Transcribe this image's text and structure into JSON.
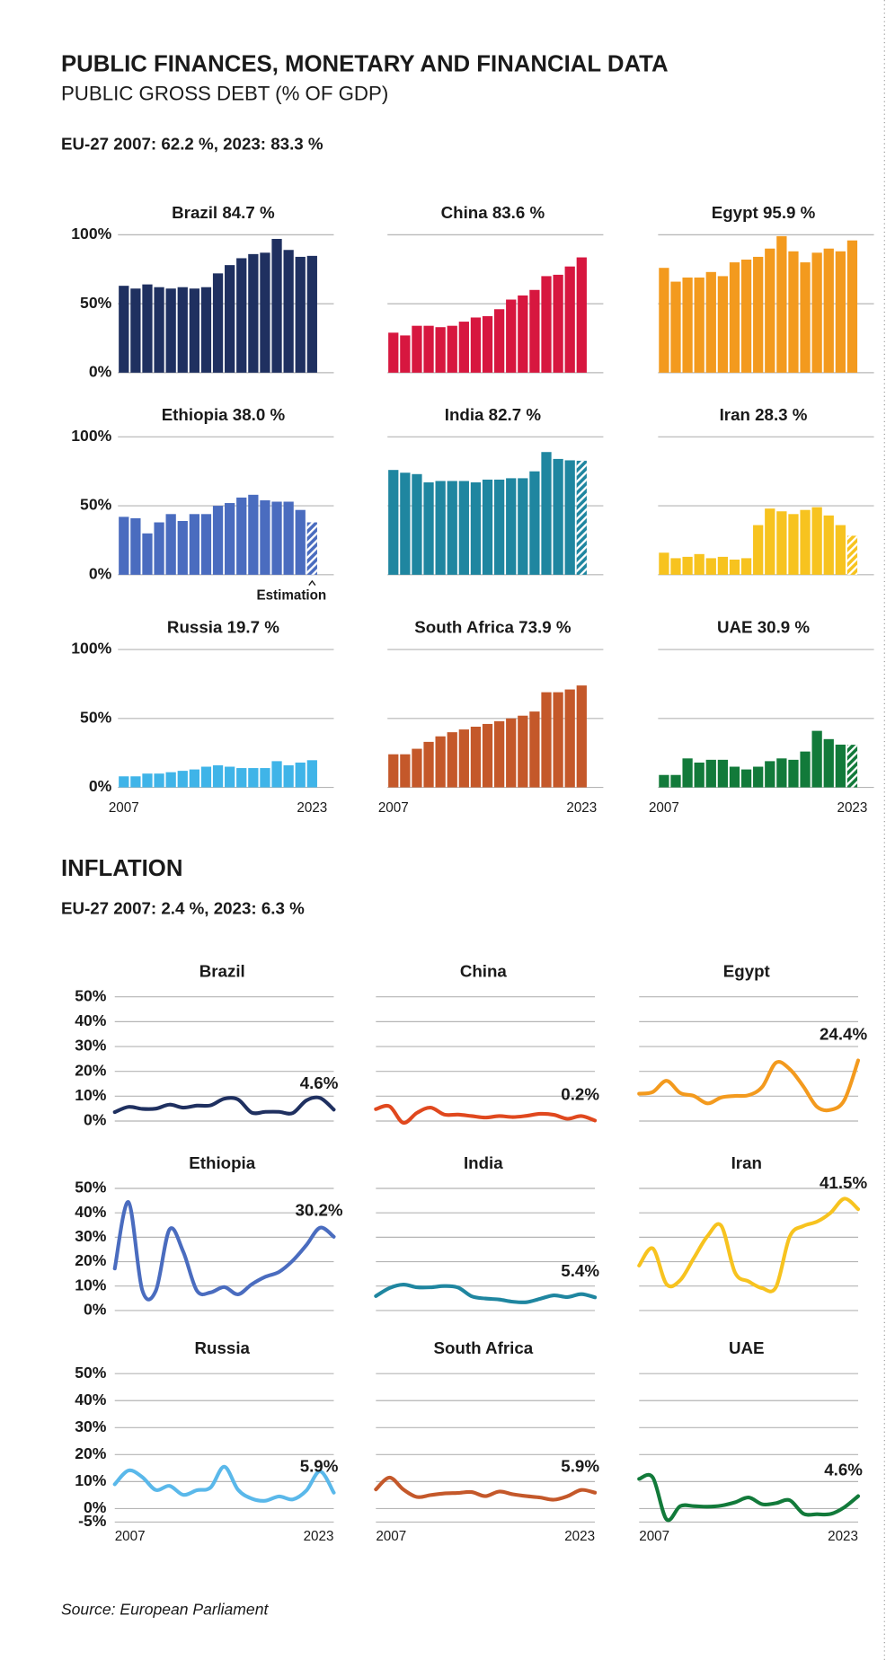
{
  "header": {
    "title": "PUBLIC FINANCES, MONETARY AND FINANCIAL DATA",
    "subtitle": "PUBLIC GROSS DEBT (% OF GDP)",
    "debt_note": "EU-27 2007: 62.2 %, 2023: 83.3  %",
    "inflation_title": "INFLATION",
    "inflation_note": "EU-27 2007: 2.4 %, 2023: 6.3  %",
    "source": "Source: European Parliament"
  },
  "chart_data": [
    {
      "type": "bar",
      "title": "Brazil  84.7 %",
      "color": "#1f3060",
      "grid": true,
      "estimate": false,
      "categories": [
        null,
        null,
        null,
        null,
        null,
        null,
        null,
        null,
        null,
        null,
        null,
        null,
        null,
        null,
        null,
        null,
        null
      ],
      "values": [
        63,
        61,
        64,
        62,
        61,
        62,
        61,
        62,
        72,
        78,
        83,
        86,
        87,
        97,
        89,
        84,
        84.7
      ],
      "ylim": [
        0,
        100
      ],
      "yticks": [
        {
          "value": 0,
          "label": "0%"
        },
        {
          "value": 50,
          "label": "50%"
        },
        {
          "value": 100,
          "label": "100%"
        }
      ]
    },
    {
      "type": "bar",
      "title": "China  83.6 %",
      "color": "#d7173f",
      "grid": true,
      "estimate": false,
      "categories": [
        null,
        null,
        null,
        null,
        null,
        null,
        null,
        null,
        null,
        null,
        null,
        null,
        null,
        null,
        null,
        null,
        null
      ],
      "values": [
        29,
        27,
        34,
        34,
        33,
        34,
        37,
        40,
        41,
        46,
        53,
        56,
        60,
        70,
        71,
        77,
        83.6
      ],
      "ylim": [
        0,
        100
      ],
      "yticks": [
        0,
        50,
        100
      ]
    },
    {
      "type": "bar",
      "title": "Egypt  95.9 %",
      "color": "#f39a1e",
      "grid": true,
      "estimate": false,
      "categories": [
        null,
        null,
        null,
        null,
        null,
        null,
        null,
        null,
        null,
        null,
        null,
        null,
        null,
        null,
        null,
        null,
        null
      ],
      "values": [
        76,
        66,
        69,
        69,
        73,
        70,
        80,
        82,
        84,
        90,
        99,
        88,
        80,
        87,
        90,
        88,
        95.9
      ],
      "ylim": [
        0,
        100
      ],
      "yticks": [
        0,
        50,
        100
      ]
    },
    {
      "type": "bar",
      "title": "Ethiopia  38.0 %",
      "color": "#4a6cbf",
      "grid": true,
      "estimate": true,
      "annotation": "Estimation",
      "categories": [
        null,
        null,
        null,
        null,
        null,
        null,
        null,
        null,
        null,
        null,
        null,
        null,
        null,
        null,
        null,
        null,
        null
      ],
      "values": [
        42,
        41,
        30,
        38,
        44,
        39,
        44,
        44,
        50,
        52,
        56,
        58,
        54,
        53,
        53,
        47,
        38.0
      ],
      "ylim": [
        0,
        100
      ],
      "yticks": [
        {
          "value": 0,
          "label": "0%"
        },
        {
          "value": 50,
          "label": "50%"
        },
        {
          "value": 100,
          "label": "100%"
        }
      ]
    },
    {
      "type": "bar",
      "title": "India  82.7 %",
      "color": "#1f86a0",
      "grid": true,
      "estimate": true,
      "categories": [
        null,
        null,
        null,
        null,
        null,
        null,
        null,
        null,
        null,
        null,
        null,
        null,
        null,
        null,
        null,
        null,
        null
      ],
      "values": [
        76,
        74,
        73,
        67,
        68,
        68,
        68,
        67,
        69,
        69,
        70,
        70,
        75,
        89,
        84,
        83,
        82.7
      ],
      "ylim": [
        0,
        100
      ],
      "yticks": [
        0,
        50,
        100
      ]
    },
    {
      "type": "bar",
      "title": "Iran 28.3 %",
      "color": "#f7c31f",
      "grid": true,
      "estimate": true,
      "categories": [
        null,
        null,
        null,
        null,
        null,
        null,
        null,
        null,
        null,
        null,
        null,
        null,
        null,
        null,
        null,
        null,
        null
      ],
      "values": [
        16,
        12,
        13,
        15,
        12,
        13,
        11,
        12,
        36,
        48,
        46,
        44,
        47,
        49,
        43,
        36,
        28.3
      ],
      "ylim": [
        0,
        100
      ],
      "yticks": [
        0,
        50,
        100
      ]
    },
    {
      "type": "bar",
      "title": "Russia 19.7 %",
      "color": "#3fb4e8",
      "grid": true,
      "estimate": false,
      "categories": [
        "2007",
        null,
        null,
        null,
        null,
        null,
        null,
        null,
        null,
        null,
        null,
        null,
        null,
        null,
        null,
        null,
        "2023"
      ],
      "values": [
        8,
        8,
        10,
        10,
        11,
        12,
        13,
        15,
        16,
        15,
        14,
        14,
        14,
        19,
        16,
        18,
        19.7
      ],
      "ylim": [
        0,
        100
      ],
      "yticks": [
        {
          "value": 0,
          "label": "0%"
        },
        {
          "value": 50,
          "label": "50%"
        },
        {
          "value": 100,
          "label": "100%"
        }
      ]
    },
    {
      "type": "bar",
      "title": "South Africa  73.9 %",
      "color": "#c4582a",
      "grid": true,
      "estimate": false,
      "categories": [
        "2007",
        null,
        null,
        null,
        null,
        null,
        null,
        null,
        null,
        null,
        null,
        null,
        null,
        null,
        null,
        null,
        "2023"
      ],
      "values": [
        24,
        24,
        28,
        33,
        37,
        40,
        42,
        44,
        46,
        48,
        50,
        52,
        55,
        69,
        69,
        71,
        73.9
      ],
      "ylim": [
        0,
        100
      ],
      "yticks": [
        0,
        50,
        100
      ]
    },
    {
      "type": "bar",
      "title": "UAE  30.9 %",
      "color": "#127a3a",
      "grid": true,
      "estimate": true,
      "categories": [
        "2007",
        null,
        null,
        null,
        null,
        null,
        null,
        null,
        null,
        null,
        null,
        null,
        null,
        null,
        null,
        null,
        "2023"
      ],
      "values": [
        9,
        9,
        21,
        18,
        20,
        20,
        15,
        13,
        15,
        19,
        21,
        20,
        26,
        41,
        35,
        31,
        30.9
      ],
      "ylim": [
        0,
        100
      ],
      "yticks": [
        0,
        50,
        100
      ]
    },
    {
      "type": "line",
      "title": "Brazil",
      "color": "#1f3060",
      "grid": true,
      "categories": [
        null,
        null,
        null,
        null,
        null,
        null,
        null,
        null,
        null,
        null,
        null,
        null,
        null,
        null,
        null,
        null,
        null
      ],
      "values": [
        3.6,
        5.7,
        4.9,
        5.0,
        6.6,
        5.4,
        6.2,
        6.3,
        9.0,
        8.7,
        3.4,
        3.7,
        3.7,
        3.2,
        8.3,
        9.3,
        4.6
      ],
      "value_labels": [
        null,
        null,
        null,
        null,
        null,
        null,
        null,
        null,
        null,
        null,
        null,
        null,
        null,
        null,
        null,
        null,
        "4.6%"
      ],
      "ylim": [
        0,
        50
      ],
      "yticks": [
        {
          "value": 0,
          "label": "0%"
        },
        {
          "value": 10,
          "label": "10%"
        },
        {
          "value": 20,
          "label": "20%"
        },
        {
          "value": 30,
          "label": "30%"
        },
        {
          "value": 40,
          "label": "40%"
        },
        {
          "value": 50,
          "label": "50%"
        }
      ]
    },
    {
      "type": "line",
      "title": "China",
      "color": "#e0481e",
      "grid": true,
      "categories": [
        null,
        null,
        null,
        null,
        null,
        null,
        null,
        null,
        null,
        null,
        null,
        null,
        null,
        null,
        null,
        null,
        null
      ],
      "values": [
        4.8,
        5.9,
        -0.7,
        3.3,
        5.4,
        2.6,
        2.6,
        2.0,
        1.4,
        2.0,
        1.6,
        2.1,
        2.9,
        2.5,
        0.9,
        2.0,
        0.2
      ],
      "value_labels": [
        null,
        null,
        null,
        null,
        null,
        null,
        null,
        null,
        null,
        null,
        null,
        null,
        null,
        null,
        null,
        null,
        "0.2%"
      ],
      "ylim": [
        0,
        50
      ],
      "yticks": [
        0,
        10,
        20,
        30,
        40,
        50
      ]
    },
    {
      "type": "line",
      "title": "Egypt",
      "color": "#f39a1e",
      "grid": true,
      "categories": [
        null,
        null,
        null,
        null,
        null,
        null,
        null,
        null,
        null,
        null,
        null,
        null,
        null,
        null,
        null,
        null,
        null
      ],
      "values": [
        11,
        11.7,
        16.2,
        11.3,
        10.1,
        7.1,
        9.5,
        10.1,
        10.4,
        13.8,
        23.5,
        20.9,
        13.9,
        5.7,
        4.5,
        8.5,
        24.4
      ],
      "value_labels": [
        null,
        null,
        null,
        null,
        null,
        null,
        null,
        null,
        null,
        null,
        null,
        null,
        null,
        null,
        null,
        null,
        "24.4%"
      ],
      "ylim": [
        0,
        50
      ],
      "yticks": [
        0,
        10,
        20,
        30,
        40,
        50
      ]
    },
    {
      "type": "line",
      "title": "Ethiopia",
      "color": "#4a6cbf",
      "grid": true,
      "categories": [
        null,
        null,
        null,
        null,
        null,
        null,
        null,
        null,
        null,
        null,
        null,
        null,
        null,
        null,
        null,
        null,
        null
      ],
      "values": [
        17.2,
        44.4,
        8.5,
        8.1,
        33.2,
        24.1,
        8.1,
        7.4,
        9.6,
        6.6,
        10.7,
        13.8,
        15.8,
        20.4,
        26.8,
        33.9,
        30.2
      ],
      "value_labels": [
        null,
        null,
        null,
        null,
        null,
        null,
        null,
        null,
        null,
        null,
        null,
        null,
        null,
        null,
        null,
        null,
        "30.2%"
      ],
      "ylim": [
        0,
        50
      ],
      "yticks": [
        {
          "value": 0,
          "label": "0%"
        },
        {
          "value": 10,
          "label": "10%"
        },
        {
          "value": 20,
          "label": "20%"
        },
        {
          "value": 30,
          "label": "30%"
        },
        {
          "value": 40,
          "label": "40%"
        },
        {
          "value": 50,
          "label": "50%"
        }
      ]
    },
    {
      "type": "line",
      "title": "India",
      "color": "#1f86a0",
      "grid": true,
      "categories": [
        null,
        null,
        null,
        null,
        null,
        null,
        null,
        null,
        null,
        null,
        null,
        null,
        null,
        null,
        null,
        null,
        null
      ],
      "values": [
        5.9,
        9.2,
        10.6,
        9.5,
        9.5,
        10.0,
        9.4,
        5.8,
        4.9,
        4.5,
        3.6,
        3.4,
        4.8,
        6.2,
        5.5,
        6.7,
        5.4
      ],
      "value_labels": [
        null,
        null,
        null,
        null,
        null,
        null,
        null,
        null,
        null,
        null,
        null,
        null,
        null,
        null,
        null,
        null,
        "5.4%"
      ],
      "ylim": [
        0,
        50
      ],
      "yticks": [
        0,
        10,
        20,
        30,
        40,
        50
      ]
    },
    {
      "type": "line",
      "title": "Iran",
      "color": "#f7c31f",
      "grid": true,
      "categories": [
        null,
        null,
        null,
        null,
        null,
        null,
        null,
        null,
        null,
        null,
        null,
        null,
        null,
        null,
        null,
        null,
        null
      ],
      "values": [
        18.4,
        25.4,
        10.8,
        12.4,
        21.5,
        30.5,
        34.7,
        15.6,
        11.9,
        9.1,
        9.6,
        30.2,
        34.6,
        36.4,
        40.1,
        45.8,
        41.5
      ],
      "value_labels": [
        null,
        null,
        null,
        null,
        null,
        null,
        null,
        null,
        null,
        null,
        null,
        null,
        null,
        null,
        null,
        null,
        "41.5%"
      ],
      "ylim": [
        0,
        50
      ],
      "yticks": [
        0,
        10,
        20,
        30,
        40,
        50
      ]
    },
    {
      "type": "line",
      "title": "Russia",
      "color": "#5ab8ea",
      "grid": true,
      "categories": [
        "2007",
        null,
        null,
        null,
        null,
        null,
        null,
        null,
        null,
        null,
        null,
        null,
        null,
        null,
        null,
        null,
        "2023"
      ],
      "values": [
        9.0,
        14.1,
        11.7,
        6.9,
        8.4,
        5.1,
        6.8,
        7.8,
        15.5,
        7.0,
        3.7,
        2.9,
        4.5,
        3.4,
        6.7,
        13.8,
        5.9
      ],
      "value_labels": [
        null,
        null,
        null,
        null,
        null,
        null,
        null,
        null,
        null,
        null,
        null,
        null,
        null,
        null,
        null,
        null,
        "5.9%"
      ],
      "ylim": [
        -5,
        50
      ],
      "yticks": [
        {
          "value": -5,
          "label": "-5%"
        },
        {
          "value": 0,
          "label": "0%"
        },
        {
          "value": 10,
          "label": "10%"
        },
        {
          "value": 20,
          "label": "20%"
        },
        {
          "value": 30,
          "label": "30%"
        },
        {
          "value": 40,
          "label": "40%"
        },
        {
          "value": 50,
          "label": "50%"
        }
      ]
    },
    {
      "type": "line",
      "title": "South Africa",
      "color": "#c4582a",
      "grid": true,
      "categories": [
        "2007",
        null,
        null,
        null,
        null,
        null,
        null,
        null,
        null,
        null,
        null,
        null,
        null,
        null,
        null,
        null,
        "2023"
      ],
      "values": [
        7.1,
        11.5,
        7.1,
        4.3,
        5.0,
        5.6,
        5.8,
        6.1,
        4.6,
        6.3,
        5.3,
        4.6,
        4.1,
        3.3,
        4.6,
        6.9,
        5.9
      ],
      "value_labels": [
        null,
        null,
        null,
        null,
        null,
        null,
        null,
        null,
        null,
        null,
        null,
        null,
        null,
        null,
        null,
        null,
        "5.9%"
      ],
      "ylim": [
        -5,
        50
      ],
      "yticks": [
        -5,
        0,
        10,
        20,
        30,
        40,
        50
      ]
    },
    {
      "type": "line",
      "title": "UAE",
      "color": "#127a3a",
      "grid": true,
      "categories": [
        "2007",
        null,
        null,
        null,
        null,
        null,
        null,
        null,
        null,
        null,
        null,
        null,
        null,
        null,
        null,
        null,
        "2023"
      ],
      "values": [
        11,
        11.5,
        -4,
        0.9,
        0.9,
        0.7,
        1.1,
        2.3,
        4.1,
        1.6,
        2.0,
        3.1,
        -1.9,
        -2.1,
        -2.0,
        0.5,
        4.6
      ],
      "value_labels": [
        null,
        null,
        null,
        null,
        null,
        null,
        null,
        null,
        null,
        null,
        null,
        null,
        null,
        null,
        null,
        null,
        "4.6%"
      ],
      "ylim": [
        -5,
        50
      ],
      "yticks": [
        -5,
        0,
        10,
        20,
        30,
        40,
        50
      ]
    }
  ]
}
